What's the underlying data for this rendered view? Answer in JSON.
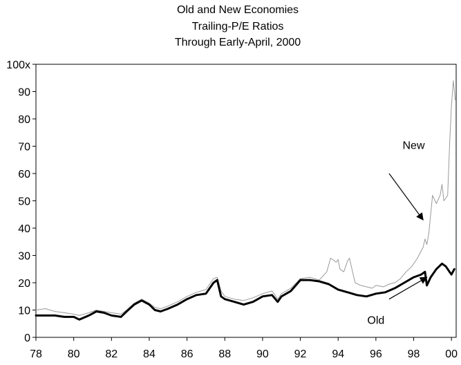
{
  "chart_data": {
    "type": "line",
    "title_lines": [
      "Old and New Economies",
      "Trailing-P/E Ratios",
      "Through Early-April, 2000"
    ],
    "xlabel": "",
    "ylabel": "",
    "xlim": [
      1978,
      2000.25
    ],
    "ylim": [
      0,
      100
    ],
    "x_ticks": [
      1978,
      1980,
      1982,
      1984,
      1986,
      1988,
      1990,
      1992,
      1994,
      1996,
      1998,
      2000
    ],
    "x_tick_labels": [
      "78",
      "80",
      "82",
      "84",
      "86",
      "88",
      "90",
      "92",
      "94",
      "96",
      "98",
      "00"
    ],
    "y_ticks": [
      0,
      10,
      20,
      30,
      40,
      50,
      60,
      70,
      80,
      90,
      100
    ],
    "y_tick_labels": [
      "0",
      "10",
      "20",
      "30",
      "40",
      "50",
      "60",
      "70",
      "80",
      "90",
      "100x"
    ],
    "grid": false,
    "series": [
      {
        "name": "New",
        "color": "#999999",
        "style": "thin",
        "points": [
          [
            1978.0,
            10.0
          ],
          [
            1978.5,
            10.5
          ],
          [
            1979.0,
            9.5
          ],
          [
            1979.5,
            9.0
          ],
          [
            1980.0,
            8.5
          ],
          [
            1980.3,
            8.0
          ],
          [
            1980.8,
            9.0
          ],
          [
            1981.2,
            10.0
          ],
          [
            1981.6,
            9.5
          ],
          [
            1982.0,
            9.0
          ],
          [
            1982.5,
            8.5
          ],
          [
            1982.8,
            10.0
          ],
          [
            1983.2,
            12.5
          ],
          [
            1983.6,
            14.0
          ],
          [
            1984.0,
            12.5
          ],
          [
            1984.3,
            11.0
          ],
          [
            1984.6,
            10.5
          ],
          [
            1985.0,
            11.5
          ],
          [
            1985.5,
            13.0
          ],
          [
            1986.0,
            15.0
          ],
          [
            1986.5,
            16.5
          ],
          [
            1987.0,
            17.5
          ],
          [
            1987.4,
            21.5
          ],
          [
            1987.6,
            22.0
          ],
          [
            1987.8,
            17.0
          ],
          [
            1988.0,
            15.0
          ],
          [
            1988.5,
            14.0
          ],
          [
            1989.0,
            13.5
          ],
          [
            1989.5,
            14.5
          ],
          [
            1990.0,
            16.0
          ],
          [
            1990.5,
            17.0
          ],
          [
            1990.8,
            14.0
          ],
          [
            1991.0,
            16.0
          ],
          [
            1991.5,
            18.0
          ],
          [
            1992.0,
            21.5
          ],
          [
            1992.5,
            22.0
          ],
          [
            1993.0,
            21.0
          ],
          [
            1993.4,
            24.0
          ],
          [
            1993.6,
            29.0
          ],
          [
            1993.9,
            27.5
          ],
          [
            1994.0,
            28.5
          ],
          [
            1994.1,
            25.0
          ],
          [
            1994.3,
            24.0
          ],
          [
            1994.5,
            28.0
          ],
          [
            1994.6,
            29.0
          ],
          [
            1994.7,
            26.0
          ],
          [
            1994.9,
            20.0
          ],
          [
            1995.2,
            19.0
          ],
          [
            1995.5,
            18.5
          ],
          [
            1995.8,
            18.0
          ],
          [
            1996.0,
            19.0
          ],
          [
            1996.4,
            18.5
          ],
          [
            1996.7,
            19.5
          ],
          [
            1997.0,
            20.0
          ],
          [
            1997.3,
            21.5
          ],
          [
            1997.6,
            24.0
          ],
          [
            1997.9,
            26.0
          ],
          [
            1998.2,
            29.0
          ],
          [
            1998.5,
            33.0
          ],
          [
            1998.6,
            36.0
          ],
          [
            1998.7,
            34.0
          ],
          [
            1998.8,
            38.0
          ],
          [
            1998.9,
            45.0
          ],
          [
            1999.0,
            52.0
          ],
          [
            1999.2,
            49.0
          ],
          [
            1999.4,
            52.0
          ],
          [
            1999.5,
            56.0
          ],
          [
            1999.6,
            50.0
          ],
          [
            1999.8,
            52.0
          ],
          [
            1999.9,
            70.0
          ],
          [
            2000.0,
            85.0
          ],
          [
            2000.1,
            94.0
          ],
          [
            2000.2,
            87.0
          ]
        ]
      },
      {
        "name": "Old",
        "color": "#000000",
        "style": "thick",
        "points": [
          [
            1978.0,
            8.0
          ],
          [
            1978.5,
            8.0
          ],
          [
            1979.0,
            8.0
          ],
          [
            1979.5,
            7.5
          ],
          [
            1980.0,
            7.5
          ],
          [
            1980.3,
            6.5
          ],
          [
            1980.8,
            8.0
          ],
          [
            1981.2,
            9.5
          ],
          [
            1981.6,
            9.0
          ],
          [
            1982.0,
            8.0
          ],
          [
            1982.5,
            7.5
          ],
          [
            1982.8,
            9.5
          ],
          [
            1983.2,
            12.0
          ],
          [
            1983.6,
            13.5
          ],
          [
            1984.0,
            12.0
          ],
          [
            1984.3,
            10.0
          ],
          [
            1984.6,
            9.5
          ],
          [
            1985.0,
            10.5
          ],
          [
            1985.5,
            12.0
          ],
          [
            1986.0,
            14.0
          ],
          [
            1986.5,
            15.5
          ],
          [
            1987.0,
            16.0
          ],
          [
            1987.4,
            20.0
          ],
          [
            1987.6,
            21.0
          ],
          [
            1987.8,
            15.0
          ],
          [
            1988.0,
            14.0
          ],
          [
            1988.5,
            13.0
          ],
          [
            1989.0,
            12.0
          ],
          [
            1989.5,
            13.0
          ],
          [
            1990.0,
            15.0
          ],
          [
            1990.5,
            15.5
          ],
          [
            1990.8,
            13.0
          ],
          [
            1991.0,
            15.0
          ],
          [
            1991.5,
            17.0
          ],
          [
            1992.0,
            21.0
          ],
          [
            1992.5,
            21.0
          ],
          [
            1993.0,
            20.5
          ],
          [
            1993.5,
            19.5
          ],
          [
            1994.0,
            17.5
          ],
          [
            1994.5,
            16.5
          ],
          [
            1995.0,
            15.5
          ],
          [
            1995.5,
            15.0
          ],
          [
            1996.0,
            16.0
          ],
          [
            1996.5,
            16.5
          ],
          [
            1997.0,
            18.0
          ],
          [
            1997.5,
            20.0
          ],
          [
            1998.0,
            22.0
          ],
          [
            1998.4,
            23.0
          ],
          [
            1998.6,
            24.0
          ],
          [
            1998.7,
            19.0
          ],
          [
            1998.9,
            22.0
          ],
          [
            1999.2,
            25.0
          ],
          [
            1999.5,
            27.0
          ],
          [
            1999.7,
            26.0
          ],
          [
            1999.9,
            24.0
          ],
          [
            2000.0,
            23.0
          ],
          [
            2000.15,
            25.0
          ]
        ]
      }
    ],
    "annotations": [
      {
        "text": "New",
        "label_at": [
          1998.0,
          69.0
        ],
        "arrow_from": [
          1996.7,
          60.0
        ],
        "arrow_to": [
          1998.5,
          43.0
        ]
      },
      {
        "text": "Old",
        "label_at": [
          1996.0,
          5.0
        ],
        "arrow_from": [
          1996.7,
          14.0
        ],
        "arrow_to": [
          1998.7,
          22.0
        ]
      }
    ]
  }
}
